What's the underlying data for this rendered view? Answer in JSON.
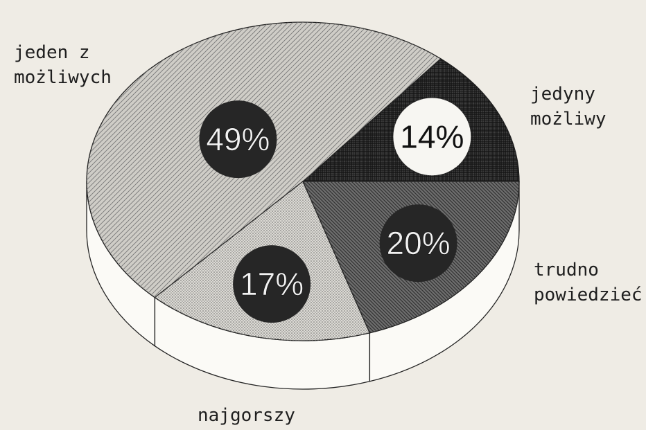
{
  "chart_data": {
    "type": "pie",
    "categories": [
      "jedyny możliwy",
      "jeden z możliwych",
      "najgorszy",
      "trudno powiedzieć"
    ],
    "values": [
      14,
      49,
      17,
      20
    ],
    "value_labels": [
      "14%",
      "49%",
      "17%",
      "20%"
    ],
    "colors": [
      "#3c3c3c",
      "#cfcdc7",
      "#dcdad4",
      "#6e6e6e"
    ]
  }
}
